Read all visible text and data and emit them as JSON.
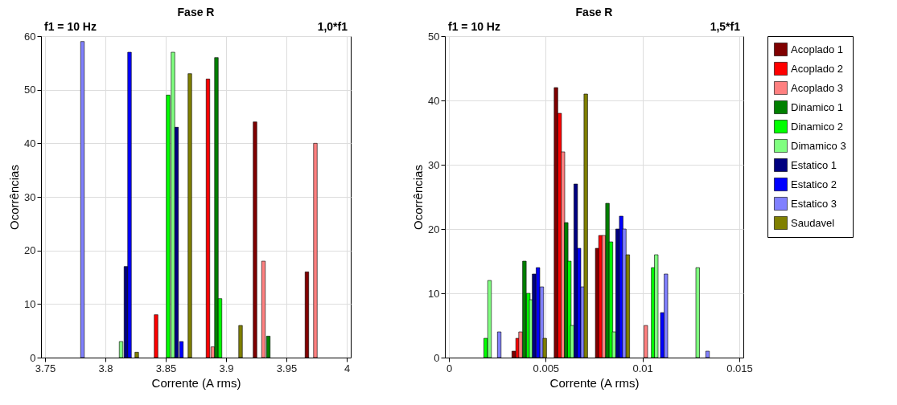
{
  "chart_data": [
    {
      "type": "bar",
      "title": "Fase R",
      "annotations": [
        "f1 = 10 Hz",
        "1,0*f1"
      ],
      "xlabel": "Corrente (A rms)",
      "ylabel": "Ocorrências",
      "xlim": [
        3.75,
        4
      ],
      "xticks": [
        3.75,
        3.8,
        3.85,
        3.9,
        3.95,
        4
      ],
      "ylim": [
        0,
        60
      ],
      "yticks": [
        0,
        10,
        20,
        30,
        40,
        50,
        60
      ],
      "grid": true,
      "legend": "right",
      "series": [
        {
          "name": "Acoplado 1",
          "color": "#800000",
          "x": [
            3.924,
            3.967
          ],
          "values": [
            44,
            16
          ]
        },
        {
          "name": "Acoplado 2",
          "color": "#ff0000",
          "x": [
            3.842,
            3.885
          ],
          "values": [
            8,
            52
          ]
        },
        {
          "name": "Acoplado 3",
          "color": "#ff8080",
          "x": [
            3.889,
            3.931,
            3.974
          ],
          "values": [
            2,
            18,
            40
          ]
        },
        {
          "name": "Dinamico 1",
          "color": "#008000",
          "x": [
            3.892,
            3.935
          ],
          "values": [
            56,
            4
          ]
        },
        {
          "name": "Dinamico 2",
          "color": "#00ff00",
          "x": [
            3.852,
            3.895
          ],
          "values": [
            49,
            11
          ]
        },
        {
          "name": "Dimamico 3",
          "color": "#80ff80",
          "x": [
            3.813,
            3.856
          ],
          "values": [
            3,
            57
          ]
        },
        {
          "name": "Estatico 1",
          "color": "#000080",
          "x": [
            3.817,
            3.859
          ],
          "values": [
            17,
            43
          ]
        },
        {
          "name": "Estatico 2",
          "color": "#0000ff",
          "x": [
            3.82,
            3.863
          ],
          "values": [
            57,
            3
          ]
        },
        {
          "name": "Estatico 3",
          "color": "#8080ff",
          "x": [
            3.781
          ],
          "values": [
            59
          ]
        },
        {
          "name": "Saudavel",
          "color": "#808000",
          "x": [
            3.826,
            3.87,
            3.912
          ],
          "values": [
            1,
            53,
            6
          ]
        }
      ]
    },
    {
      "type": "bar",
      "title": "Fase R",
      "annotations": [
        "f1 = 10 Hz",
        "1,5*f1"
      ],
      "xlabel": "Corrente (A rms)",
      "ylabel": "Ocorrências",
      "xlim": [
        0,
        0.015
      ],
      "xticks": [
        0,
        0.005,
        0.01,
        0.015
      ],
      "ylim": [
        0,
        50
      ],
      "yticks": [
        0,
        10,
        20,
        30,
        40,
        50
      ],
      "grid": true,
      "legend": "right",
      "series": [
        {
          "name": "Acoplado 1",
          "color": "#800000",
          "x": [
            0.00335,
            0.00553,
            0.00766
          ],
          "values": [
            1,
            42,
            17
          ]
        },
        {
          "name": "Acoplado 2",
          "color": "#ff0000",
          "x": [
            0.00355,
            0.00572,
            0.00783
          ],
          "values": [
            3,
            38,
            19
          ]
        },
        {
          "name": "Acoplado 3",
          "color": "#ff8080",
          "x": [
            0.0037,
            0.00589,
            0.008,
            0.01017
          ],
          "values": [
            4,
            32,
            19,
            5
          ]
        },
        {
          "name": "Dinamico 1",
          "color": "#008000",
          "x": [
            0.0039,
            0.00606,
            0.00819
          ],
          "values": [
            15,
            21,
            24
          ]
        },
        {
          "name": "Dinamico 2",
          "color": "#00ff00",
          "x": [
            0.0019,
            0.0041,
            0.00622,
            0.00837,
            0.01055
          ],
          "values": [
            3,
            10,
            15,
            18,
            14
          ]
        },
        {
          "name": "Dimamico 3",
          "color": "#80ff80",
          "x": [
            0.0021,
            0.00425,
            0.00637,
            0.00853,
            0.01071,
            0.01285
          ],
          "values": [
            12,
            9,
            5,
            4,
            16,
            14
          ]
        },
        {
          "name": "Estatico 1",
          "color": "#000080",
          "x": [
            0.0044,
            0.00655,
            0.00871
          ],
          "values": [
            13,
            27,
            20
          ]
        },
        {
          "name": "Estatico 2",
          "color": "#0000ff",
          "x": [
            0.0046,
            0.00672,
            0.0089,
            0.01102
          ],
          "values": [
            14,
            17,
            22,
            7
          ]
        },
        {
          "name": "Estatico 3",
          "color": "#8080ff",
          "x": [
            0.0026,
            0.0048,
            0.00691,
            0.00906,
            0.01121,
            0.01336
          ],
          "values": [
            4,
            11,
            11,
            20,
            13,
            1
          ]
        },
        {
          "name": "Saudavel",
          "color": "#808000",
          "x": [
            0.00495,
            0.00707,
            0.00924
          ],
          "values": [
            3,
            41,
            16
          ]
        }
      ]
    }
  ]
}
